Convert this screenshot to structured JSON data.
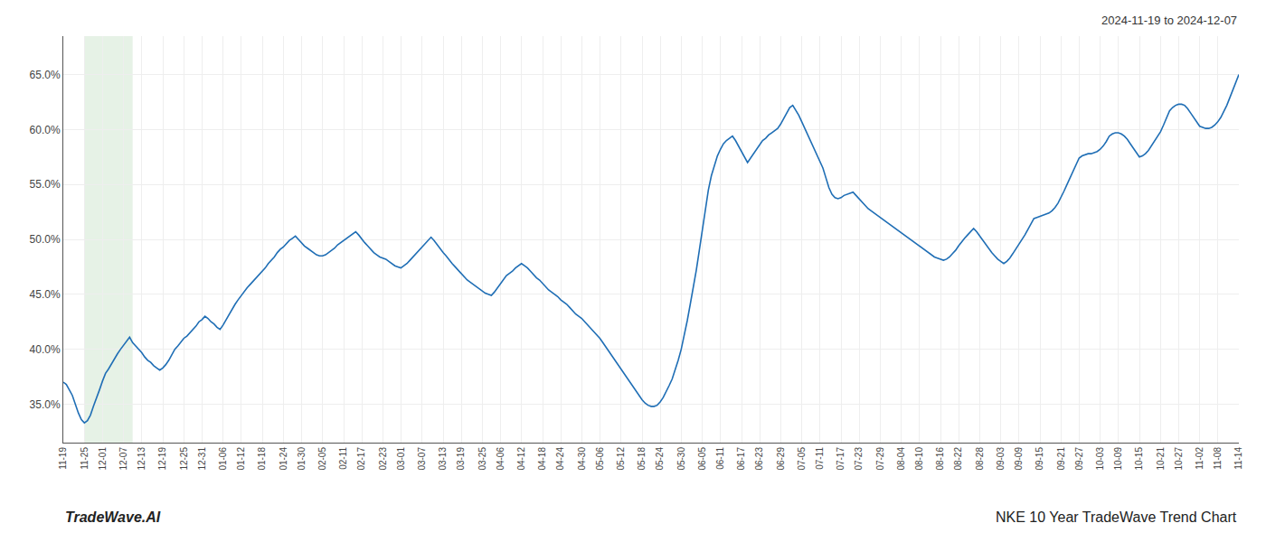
{
  "chart_data": {
    "type": "line",
    "title": "NKE 10 Year TradeWave Trend Chart",
    "subtitle": "2024-11-19 to 2024-12-07",
    "annotations": [
      "TradeWave.AI"
    ],
    "categories": [
      "11-19",
      null,
      null,
      null,
      null,
      null,
      null,
      "11-25",
      null,
      null,
      null,
      null,
      null,
      "12-01",
      null,
      null,
      null,
      null,
      null,
      null,
      "12-07",
      null,
      null,
      null,
      null,
      null,
      "12-13",
      null,
      null,
      null,
      null,
      null,
      null,
      "12-19",
      null,
      null,
      null,
      null,
      null,
      null,
      "12-25",
      null,
      null,
      null,
      null,
      null,
      "12-31",
      null,
      null,
      null,
      null,
      null,
      null,
      "01-06",
      null,
      null,
      null,
      null,
      null,
      "01-12",
      null,
      null,
      null,
      null,
      null,
      null,
      "01-18",
      null,
      null,
      null,
      null,
      null,
      null,
      "01-24",
      null,
      null,
      null,
      null,
      null,
      "01-30",
      null,
      null,
      null,
      null,
      null,
      null,
      "02-05",
      null,
      null,
      null,
      null,
      null,
      null,
      "02-11",
      null,
      null,
      null,
      null,
      null,
      "02-17",
      null,
      null,
      null,
      null,
      null,
      null,
      "02-23",
      null,
      null,
      null,
      null,
      null,
      "03-01",
      null,
      null,
      null,
      null,
      null,
      null,
      "03-07",
      null,
      null,
      null,
      null,
      null,
      null,
      "03-13",
      null,
      null,
      null,
      null,
      null,
      "03-19",
      null,
      null,
      null,
      null,
      null,
      null,
      "03-25",
      null,
      null,
      null,
      null,
      null,
      "04-06",
      null,
      null,
      null,
      null,
      null,
      null,
      "04-12",
      null,
      null,
      null,
      null,
      null,
      null,
      "04-18",
      null,
      null,
      null,
      null,
      null,
      "04-24",
      null,
      null,
      null,
      null,
      null,
      null,
      "04-30",
      null,
      null,
      null,
      null,
      null,
      "05-06",
      null,
      null,
      null,
      null,
      null,
      null,
      "05-12",
      null,
      null,
      null,
      null,
      null,
      null,
      "05-18",
      null,
      null,
      null,
      null,
      null,
      "05-24",
      null,
      null,
      null,
      null,
      null,
      null,
      "05-30",
      null,
      null,
      null,
      null,
      null,
      null,
      "06-05",
      null,
      null,
      null,
      null,
      null,
      "06-11",
      null,
      null,
      null,
      null,
      null,
      null,
      "06-17",
      null,
      null,
      null,
      null,
      null,
      "06-23",
      null,
      null,
      null,
      null,
      null,
      null,
      "06-29",
      null,
      null,
      null,
      null,
      null,
      null,
      "07-05",
      null,
      null,
      null,
      null,
      null,
      "07-11",
      null,
      null,
      null,
      null,
      null,
      null,
      "07-17",
      null,
      null,
      null,
      null,
      null,
      "07-23",
      null,
      null,
      null,
      null,
      null,
      null,
      "07-29",
      null,
      null,
      null,
      null,
      null,
      null,
      "08-04",
      null,
      null,
      null,
      null,
      null,
      "08-10",
      null,
      null,
      null,
      null,
      null,
      null,
      "08-16",
      null,
      null,
      null,
      null,
      null,
      "08-22",
      null,
      null,
      null,
      null,
      null,
      null,
      "08-28",
      null,
      null,
      null,
      null,
      null,
      null,
      "09-03",
      null,
      null,
      null,
      null,
      null,
      "09-09",
      null,
      null,
      null,
      null,
      null,
      null,
      "09-15",
      null,
      null,
      null,
      null,
      null,
      null,
      "09-21",
      null,
      null,
      null,
      null,
      null,
      "09-27",
      null,
      null,
      null,
      null,
      null,
      null,
      "10-03",
      null,
      null,
      null,
      null,
      null,
      "10-09",
      null,
      null,
      null,
      null,
      null,
      null,
      "10-15",
      null,
      null,
      null,
      null,
      null,
      null,
      "10-21",
      null,
      null,
      null,
      null,
      null,
      "10-27",
      null,
      null,
      null,
      null,
      null,
      null,
      "11-02",
      null,
      null,
      null,
      null,
      null,
      "11-08",
      null,
      null,
      null,
      null,
      null,
      null,
      "11-14"
    ],
    "values": [
      0.37,
      0.368,
      0.363,
      0.358,
      0.35,
      0.342,
      0.336,
      0.333,
      0.335,
      0.34,
      0.348,
      0.355,
      0.363,
      0.371,
      0.378,
      0.382,
      0.387,
      0.392,
      0.396,
      0.4,
      0.404,
      0.408,
      0.411,
      0.406,
      0.403,
      0.4,
      0.397,
      0.393,
      0.39,
      0.388,
      0.385,
      0.383,
      0.381,
      0.383,
      0.386,
      0.39,
      0.395,
      0.4,
      0.403,
      0.407,
      0.41,
      0.412,
      0.415,
      0.418,
      0.421,
      0.425,
      0.427,
      0.43,
      0.428,
      0.425,
      0.423,
      0.42,
      0.418,
      0.422,
      0.427,
      0.432,
      0.437,
      0.441,
      0.445,
      0.449,
      0.452,
      0.456,
      0.459,
      0.462,
      0.465,
      0.468,
      0.471,
      0.474,
      0.478,
      0.481,
      0.484,
      0.488,
      0.491,
      0.493,
      0.496,
      0.499,
      0.501,
      0.503,
      0.5,
      0.497,
      0.494,
      0.492,
      0.49,
      0.488,
      0.486,
      0.485,
      0.485,
      0.486,
      0.488,
      0.49,
      0.492,
      0.495,
      0.497,
      0.499,
      0.501,
      0.503,
      0.505,
      0.507,
      0.504,
      0.5,
      0.497,
      0.494,
      0.491,
      0.488,
      0.486,
      0.484,
      0.483,
      0.482,
      0.48,
      0.478,
      0.476,
      0.475,
      0.474,
      0.476,
      0.478,
      0.481,
      0.484,
      0.487,
      0.49,
      0.493,
      0.496,
      0.499,
      0.502,
      0.499,
      0.495,
      0.491,
      0.488,
      0.485,
      0.481,
      0.478,
      0.475,
      0.472,
      0.469,
      0.466,
      0.463,
      0.461,
      0.459,
      0.457,
      0.455,
      0.453,
      0.451,
      0.45,
      0.449,
      0.452,
      0.456,
      0.459,
      0.463,
      0.467,
      0.469,
      0.471,
      0.474,
      0.476,
      0.478,
      0.476,
      0.474,
      0.471,
      0.468,
      0.465,
      0.463,
      0.46,
      0.457,
      0.454,
      0.452,
      0.45,
      0.448,
      0.445,
      0.443,
      0.441,
      0.438,
      0.435,
      0.432,
      0.43,
      0.428,
      0.425,
      0.422,
      0.419,
      0.416,
      0.413,
      0.41,
      0.406,
      0.402,
      0.398,
      0.394,
      0.39,
      0.386,
      0.382,
      0.378,
      0.374,
      0.37,
      0.366,
      0.362,
      0.358,
      0.354,
      0.351,
      0.349,
      0.348,
      0.348,
      0.349,
      0.352,
      0.356,
      0.361,
      0.367,
      0.373,
      0.381,
      0.39,
      0.4,
      0.412,
      0.426,
      0.441,
      0.456,
      0.472,
      0.49,
      0.509,
      0.528,
      0.545,
      0.558,
      0.568,
      0.576,
      0.582,
      0.587,
      0.59,
      0.592,
      0.594,
      0.59,
      0.585,
      0.58,
      0.575,
      0.57,
      0.574,
      0.578,
      0.582,
      0.586,
      0.59,
      0.592,
      0.595,
      0.597,
      0.599,
      0.601,
      0.605,
      0.61,
      0.615,
      0.62,
      0.622,
      0.618,
      0.613,
      0.607,
      0.601,
      0.595,
      0.589,
      0.583,
      0.577,
      0.571,
      0.565,
      0.556,
      0.547,
      0.541,
      0.538,
      0.537,
      0.538,
      0.54,
      0.541,
      0.542,
      0.543,
      0.54,
      0.537,
      0.534,
      0.531,
      0.528,
      0.526,
      0.524,
      0.522,
      0.52,
      0.518,
      0.516,
      0.514,
      0.512,
      0.51,
      0.508,
      0.506,
      0.504,
      0.502,
      0.5,
      0.498,
      0.496,
      0.494,
      0.492,
      0.49,
      0.488,
      0.486,
      0.484,
      0.483,
      0.482,
      0.481,
      0.482,
      0.484,
      0.487,
      0.49,
      0.494,
      0.498,
      0.501,
      0.504,
      0.507,
      0.51,
      0.507,
      0.503,
      0.499,
      0.495,
      0.491,
      0.488,
      0.485,
      0.482,
      0.48,
      0.478,
      0.48,
      0.483,
      0.487,
      0.491,
      0.495,
      0.499,
      0.504,
      0.509,
      0.514,
      0.519,
      0.52,
      0.521,
      0.522,
      0.523,
      0.524,
      0.526,
      0.529,
      0.533,
      0.538,
      0.544,
      0.55,
      0.556,
      0.562,
      0.568,
      0.574,
      0.576,
      0.577,
      0.578,
      0.578,
      0.579,
      0.58,
      0.582,
      0.585,
      0.589,
      0.594,
      0.596,
      0.597,
      0.597,
      0.596,
      0.594,
      0.591,
      0.587,
      0.583,
      0.579,
      0.575,
      0.576,
      0.578,
      0.581,
      0.585,
      0.589,
      0.593,
      0.598,
      0.604,
      0.61,
      0.617,
      0.62,
      0.622,
      0.623,
      0.623,
      0.622,
      0.619,
      0.615,
      0.611,
      0.607,
      0.603,
      0.602,
      0.601,
      0.601,
      0.602,
      0.604,
      0.607,
      0.611,
      0.616,
      0.622,
      0.629,
      0.636,
      0.643,
      0.65
    ],
    "color": "#1f6eb5",
    "ylim": [
      0.315,
      0.685
    ],
    "yticks": [
      {
        "value": 0.35,
        "label": "35.0%"
      },
      {
        "value": 0.4,
        "label": "40.0%"
      },
      {
        "value": 0.45,
        "label": "45.0%"
      },
      {
        "value": 0.5,
        "label": "50.0%"
      },
      {
        "value": 0.55,
        "label": "55.0%"
      },
      {
        "value": 0.6,
        "label": "60.0%"
      },
      {
        "value": 0.65,
        "label": "65.0%"
      }
    ],
    "grid": true,
    "shade": {
      "from": 7,
      "to": 23,
      "color": "#d6ead6"
    }
  }
}
